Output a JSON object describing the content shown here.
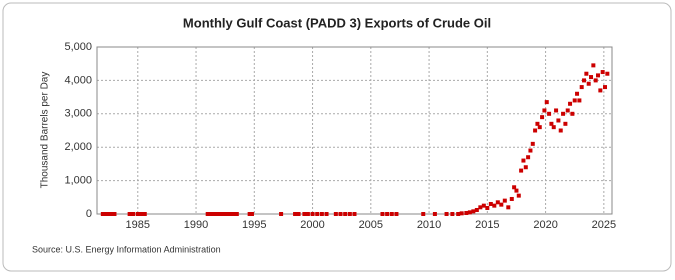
{
  "chart_data": {
    "type": "scatter",
    "title": "Monthly Gulf Coast (PADD 3) Exports of Crude Oil",
    "y_label": "Thousand Barrels per Day",
    "source": "Source: U.S. Energy Information Administration",
    "color": "#cc0000",
    "grid": true,
    "xlim": [
      1981.5,
      2025.7
    ],
    "xticks": [
      1985,
      1990,
      1995,
      2000,
      2005,
      2010,
      2015,
      2020,
      2025
    ],
    "ylim": [
      0,
      5000
    ],
    "yticks": [
      0,
      {
        "value": 1000,
        "label": "1,000"
      },
      {
        "value": 2000,
        "label": "2,000"
      },
      {
        "value": 3000,
        "label": "3,000"
      },
      {
        "value": 4000,
        "label": "4,000"
      },
      {
        "value": 5000,
        "label": "5,000"
      }
    ],
    "x": [
      1982.0,
      1982.25,
      1982.5,
      1982.75,
      1983.0,
      1984.3,
      1984.6,
      1985.0,
      1985.3,
      1985.6,
      1991.0,
      1991.25,
      1991.5,
      1991.75,
      1992.0,
      1992.25,
      1992.5,
      1992.75,
      1993.0,
      1993.25,
      1993.5,
      1994.6,
      1994.8,
      1997.3,
      1998.5,
      1998.8,
      1999.3,
      1999.6,
      2000.0,
      2000.4,
      2000.8,
      2001.2,
      2002.0,
      2002.4,
      2002.8,
      2003.2,
      2003.6,
      2006.0,
      2006.4,
      2006.8,
      2007.2,
      2009.5,
      2010.5,
      2011.5,
      2012.0,
      2012.5,
      2012.8,
      2013.2,
      2013.5,
      2013.8,
      2014.1,
      2014.4,
      2014.7,
      2015.0,
      2015.3,
      2015.6,
      2015.9,
      2016.2,
      2016.5,
      2016.8,
      2017.1,
      2017.3,
      2017.5,
      2017.7,
      2017.9,
      2018.1,
      2018.3,
      2018.5,
      2018.7,
      2018.9,
      2019.1,
      2019.3,
      2019.5,
      2019.7,
      2019.9,
      2020.1,
      2020.3,
      2020.5,
      2020.7,
      2020.9,
      2021.1,
      2021.3,
      2021.5,
      2021.7,
      2021.9,
      2022.1,
      2022.3,
      2022.5,
      2022.7,
      2022.9,
      2023.1,
      2023.3,
      2023.5,
      2023.7,
      2023.9,
      2024.1,
      2024.3,
      2024.5,
      2024.7,
      2024.9,
      2025.1,
      2025.3
    ],
    "values": [
      0,
      0,
      0,
      0,
      0,
      0,
      0,
      0,
      0,
      0,
      0,
      0,
      0,
      0,
      0,
      0,
      0,
      0,
      0,
      0,
      0,
      0,
      0,
      0,
      0,
      0,
      0,
      0,
      0,
      0,
      0,
      0,
      0,
      0,
      0,
      0,
      0,
      0,
      0,
      0,
      0,
      0,
      0,
      0,
      0,
      0,
      20,
      30,
      50,
      80,
      120,
      200,
      250,
      180,
      300,
      250,
      350,
      280,
      400,
      200,
      450,
      800,
      700,
      550,
      1300,
      1600,
      1400,
      1700,
      1900,
      2100,
      2500,
      2700,
      2600,
      2900,
      3100,
      3350,
      3000,
      2700,
      2600,
      3100,
      2800,
      2500,
      3000,
      2700,
      3100,
      3300,
      3000,
      3400,
      3600,
      3400,
      3800,
      4000,
      4200,
      3900,
      4100,
      4450,
      4000,
      4150,
      3700,
      4250,
      3800,
      4200
    ]
  }
}
